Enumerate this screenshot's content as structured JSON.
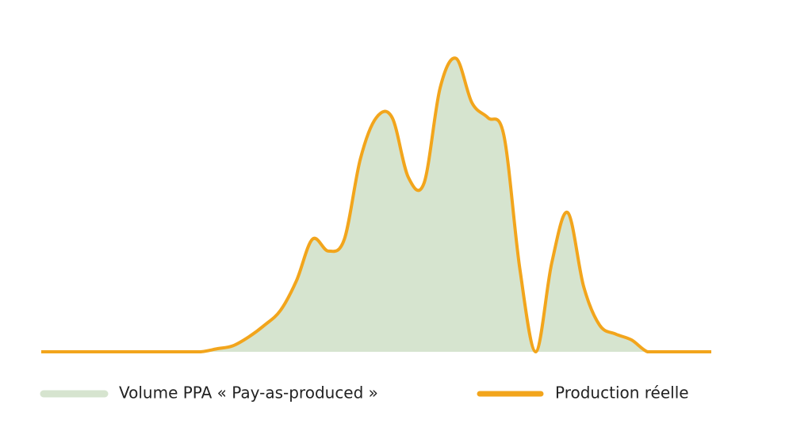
{
  "chart_data": {
    "type": "area-line",
    "categories": [
      null,
      null,
      null,
      null,
      null,
      null,
      null,
      null,
      null,
      null,
      null,
      null,
      null,
      null,
      null,
      null,
      null,
      null,
      null,
      null,
      null,
      null,
      null,
      null,
      null,
      null,
      null,
      null,
      null,
      null,
      null,
      null,
      null,
      null,
      null,
      null,
      null,
      null,
      null,
      null,
      null,
      null,
      null
    ],
    "ylim": [
      0,
      100
    ],
    "series": [
      {
        "name": "Volume PPA « Pay-as-produced »",
        "kind": "area",
        "color": "#d6e4cf",
        "values": [
          0,
          0,
          0,
          0,
          0,
          0,
          0,
          0,
          0,
          0,
          0,
          1,
          2,
          5,
          9,
          14,
          24,
          38,
          34,
          38,
          65,
          79,
          79,
          59,
          57,
          89,
          99,
          84,
          79,
          73,
          28,
          0,
          30,
          47,
          22,
          9,
          6,
          4,
          0,
          0,
          0,
          0,
          0
        ]
      },
      {
        "name": "Production réelle",
        "kind": "line",
        "color": "#f2a51c",
        "values": [
          0,
          0,
          0,
          0,
          0,
          0,
          0,
          0,
          0,
          0,
          0,
          1,
          2,
          5,
          9,
          14,
          24,
          38,
          34,
          38,
          65,
          79,
          79,
          59,
          57,
          89,
          99,
          84,
          79,
          73,
          28,
          0,
          30,
          47,
          22,
          9,
          6,
          4,
          0,
          0,
          0,
          0,
          0
        ]
      }
    ]
  }
}
